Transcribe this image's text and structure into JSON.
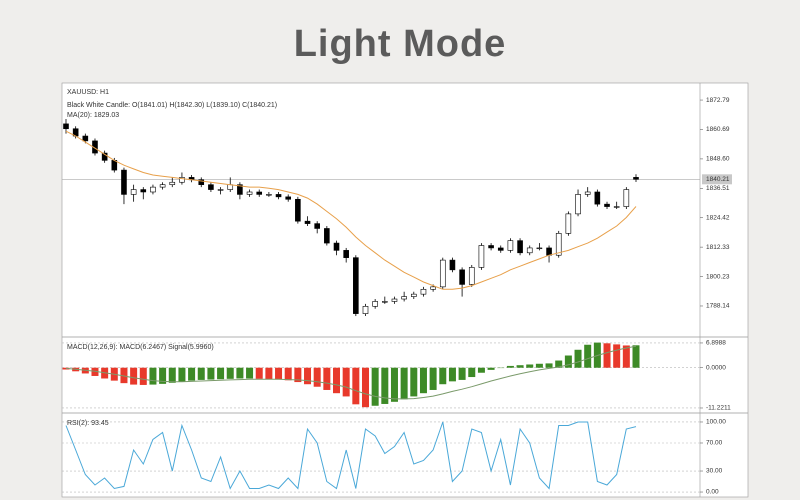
{
  "page": {
    "title": "Light Mode"
  },
  "chart_data": [
    {
      "type": "candlestick",
      "title": "XAUUSD: H1",
      "legend": [
        "Black White Candle: O(1841.01) H(1842.30) L(1839.10) C(1840.21)",
        "MA(20): 1829.03"
      ],
      "open": [
        1863,
        1861,
        1858,
        1856,
        1851,
        1848,
        1844,
        1834,
        1836,
        1835,
        1837,
        1838,
        1839,
        1841,
        1840,
        1838,
        1836,
        1836,
        1838,
        1834,
        1835,
        1834,
        1834,
        1833,
        1832,
        1823,
        1822,
        1820,
        1814,
        1811,
        1808,
        1785,
        1788,
        1790,
        1790,
        1791,
        1792,
        1793,
        1795,
        1796,
        1807,
        1803,
        1797,
        1804,
        1813,
        1812,
        1811,
        1815,
        1810,
        1812,
        1812,
        1809,
        1818,
        1826,
        1834,
        1835,
        1830,
        1829,
        1829,
        1841.01
      ],
      "high": [
        1865,
        1862,
        1859,
        1857,
        1852,
        1849,
        1845,
        1838,
        1837,
        1838,
        1839,
        1841,
        1843,
        1842,
        1841,
        1839,
        1837,
        1841,
        1839,
        1836,
        1836,
        1835,
        1835,
        1834,
        1833,
        1825,
        1823,
        1821,
        1815,
        1812,
        1809,
        1789,
        1791,
        1792,
        1792,
        1794,
        1794,
        1796,
        1797,
        1808,
        1808,
        1804,
        1805,
        1814,
        1814,
        1813,
        1816,
        1816,
        1813,
        1814,
        1813,
        1819,
        1827,
        1836,
        1837,
        1836,
        1831,
        1831,
        1837,
        1842.3
      ],
      "low": [
        1859,
        1857,
        1855,
        1850,
        1847,
        1843,
        1830,
        1831,
        1832,
        1834,
        1836,
        1837,
        1838,
        1839,
        1837,
        1835,
        1834,
        1835,
        1832,
        1833,
        1833,
        1833,
        1832,
        1831,
        1822,
        1821,
        1818,
        1813,
        1809,
        1806,
        1784,
        1784,
        1787,
        1789,
        1789,
        1790,
        1791,
        1792,
        1794,
        1795,
        1802,
        1792,
        1796,
        1803,
        1811,
        1810,
        1810,
        1809,
        1809,
        1811,
        1806,
        1808,
        1817,
        1825,
        1833,
        1829,
        1828,
        1828,
        1828,
        1839.1
      ],
      "close": [
        1861,
        1858,
        1856,
        1851,
        1848,
        1844,
        1834,
        1836,
        1835,
        1837,
        1838,
        1839,
        1841,
        1840,
        1838,
        1836,
        1836,
        1838,
        1834,
        1835,
        1834,
        1834,
        1833,
        1832,
        1823,
        1822,
        1820,
        1814,
        1811,
        1808,
        1785,
        1788,
        1790,
        1790,
        1791,
        1792,
        1793,
        1795,
        1796,
        1807,
        1803,
        1797,
        1804,
        1813,
        1812,
        1811,
        1815,
        1810,
        1812,
        1812,
        1809,
        1818,
        1826,
        1834,
        1835,
        1830,
        1829,
        1829,
        1836,
        1840.21
      ],
      "up_color": "#ffffff",
      "down_color": "#000000",
      "ma": {
        "color": "#e8a04a",
        "values": [
          1860,
          1858,
          1855.5,
          1853,
          1850.5,
          1848,
          1846,
          1844.5,
          1843,
          1842,
          1841.5,
          1841,
          1840.5,
          1840,
          1839.5,
          1839,
          1838.5,
          1838,
          1837.5,
          1837,
          1837,
          1836.5,
          1836,
          1835,
          1834,
          1832.5,
          1830,
          1827,
          1824,
          1820.5,
          1816.5,
          1813,
          1810,
          1807,
          1804.5,
          1802,
          1800,
          1798,
          1796.5,
          1795,
          1795,
          1795.5,
          1796.5,
          1798,
          1799.5,
          1801,
          1803,
          1804.5,
          1806,
          1807.5,
          1809,
          1810,
          1811,
          1812.5,
          1814,
          1816,
          1818.5,
          1821,
          1824.5,
          1829.03
        ]
      },
      "ylim": [
        1775.8,
        1879.8
      ],
      "yticks": [
        1872.79,
        1860.69,
        {
          "value": 1848.6,
          "label": "1848.60"
        },
        1836.51,
        1824.42,
        1812.33,
        1800.23,
        1788.14
      ],
      "grid": false
    },
    {
      "type": "macd",
      "title": "MACD(12,26,9): MACD(6.2467) Signal(5.9960)",
      "values": [
        -0.5,
        -1.0,
        -1.6,
        -2.3,
        -3.0,
        -3.6,
        -4.3,
        -4.7,
        -4.8,
        -4.7,
        -4.5,
        -4.2,
        -3.9,
        -3.6,
        -3.4,
        -3.3,
        -3.2,
        -3.1,
        -3.0,
        -3.0,
        -3.1,
        -3.2,
        -3.3,
        -3.5,
        -4.0,
        -4.6,
        -5.3,
        -6.2,
        -7.1,
        -8.0,
        -10.2,
        -11.0,
        -10.6,
        -10.1,
        -9.5,
        -8.8,
        -8.0,
        -7.1,
        -6.2,
        -4.6,
        -3.8,
        -3.4,
        -2.6,
        -1.4,
        -0.6,
        -0.1,
        0.5,
        0.7,
        0.9,
        1.1,
        1.2,
        2.0,
        3.4,
        5.0,
        6.4,
        7.0,
        6.8,
        6.5,
        6.2,
        6.2467
      ],
      "up_color": "#3d8a26",
      "down_color": "#e8392b",
      "signal": {
        "color": "#7a9a6a",
        "values": [
          -0.2,
          -0.4,
          -0.7,
          -1.0,
          -1.4,
          -1.8,
          -2.3,
          -2.8,
          -3.2,
          -3.6,
          -3.8,
          -3.9,
          -3.9,
          -3.8,
          -3.7,
          -3.6,
          -3.5,
          -3.4,
          -3.3,
          -3.2,
          -3.2,
          -3.2,
          -3.2,
          -3.3,
          -3.4,
          -3.6,
          -3.9,
          -4.3,
          -4.8,
          -5.4,
          -6.4,
          -7.3,
          -8.0,
          -8.4,
          -8.7,
          -8.7,
          -8.6,
          -8.3,
          -7.9,
          -7.3,
          -6.6,
          -6.0,
          -5.3,
          -4.5,
          -3.7,
          -3.0,
          -2.3,
          -1.7,
          -1.1,
          -0.6,
          -0.2,
          0.2,
          0.8,
          1.6,
          2.5,
          3.4,
          4.2,
          4.9,
          5.5,
          5.996
        ]
      },
      "ylim": [
        -12.34,
        8.28
      ],
      "yticks": [
        6.8988,
        {
          "value": 0,
          "label": "0.0000"
        },
        -11.2211
      ],
      "grid": true
    },
    {
      "type": "line",
      "title": "RSI(2): 93.45",
      "values": [
        95,
        60,
        25,
        10,
        20,
        5,
        8,
        60,
        40,
        75,
        85,
        30,
        95,
        60,
        20,
        15,
        50,
        5,
        30,
        5,
        5,
        10,
        5,
        20,
        5,
        90,
        70,
        15,
        5,
        60,
        5,
        90,
        80,
        55,
        65,
        85,
        40,
        45,
        60,
        100,
        15,
        30,
        90,
        85,
        30,
        75,
        10,
        90,
        70,
        20,
        5,
        95,
        95,
        100,
        100,
        15,
        10,
        25,
        90,
        93.45
      ],
      "color": "#4aa8d8",
      "ylim": [
        -7.1,
        111.4
      ],
      "yticks": [
        {
          "value": 100,
          "label": "100.00"
        },
        {
          "value": 70,
          "label": "70.00"
        },
        {
          "value": 30,
          "label": "30.00"
        },
        {
          "value": 0,
          "label": "0.00"
        }
      ],
      "grid": true
    }
  ]
}
